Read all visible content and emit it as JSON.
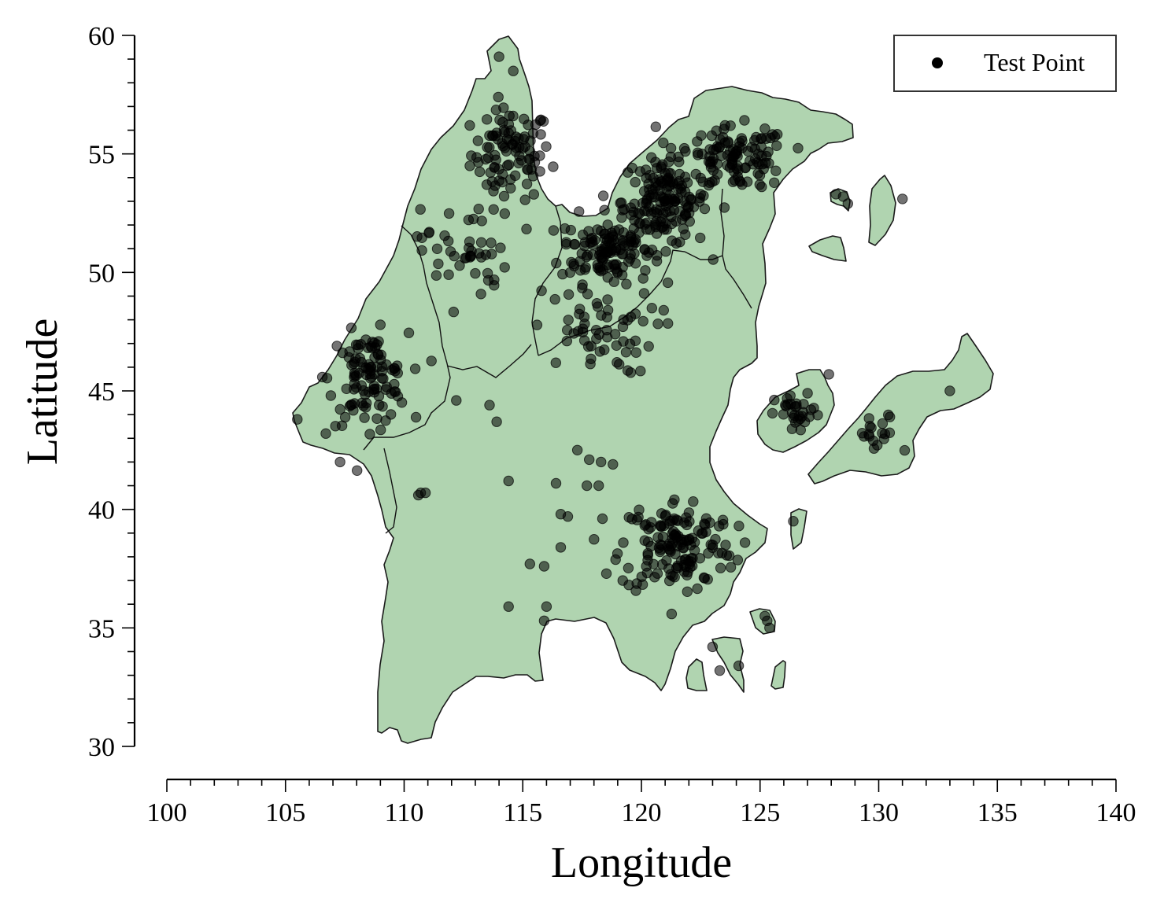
{
  "chart_data": {
    "type": "scatter",
    "xlabel": "Longitude",
    "ylabel": "Latitude",
    "xlim": [
      100,
      140
    ],
    "ylim": [
      30,
      60
    ],
    "xticks": [
      "100",
      "105",
      "110",
      "115",
      "120",
      "125",
      "130",
      "135",
      "140"
    ],
    "yticks": [
      "30",
      "35",
      "40",
      "45",
      "50",
      "55",
      "60"
    ],
    "grid": false,
    "legend": {
      "placement": "top-right",
      "entries": [
        "Test Point"
      ]
    },
    "series": [
      {
        "name": "Test Point",
        "marker_color": "#000000",
        "clusters": [
          {
            "center": [
              114.5,
              55.0
            ],
            "spread": [
              1.4,
              1.6
            ],
            "count": 95
          },
          {
            "center": [
              118.5,
              51.0
            ],
            "spread": [
              1.6,
              1.2
            ],
            "count": 120
          },
          {
            "center": [
              121.0,
              53.0
            ],
            "spread": [
              1.5,
              1.6
            ],
            "count": 160
          },
          {
            "center": [
              124.0,
              54.8
            ],
            "spread": [
              1.8,
              1.1
            ],
            "count": 110
          },
          {
            "center": [
              108.5,
              45.5
            ],
            "spread": [
              1.4,
              1.6
            ],
            "count": 110
          },
          {
            "center": [
              121.5,
              38.5
            ],
            "spread": [
              2.0,
              1.7
            ],
            "count": 150
          },
          {
            "center": [
              118.0,
              47.5
            ],
            "spread": [
              2.2,
              1.5
            ],
            "count": 60
          },
          {
            "center": [
              112.5,
              51.0
            ],
            "spread": [
              1.5,
              2.0
            ],
            "count": 45
          },
          {
            "center": [
              126.6,
              44.0
            ],
            "spread": [
              0.8,
              0.7
            ],
            "count": 30
          },
          {
            "center": [
              130.0,
              43.0
            ],
            "spread": [
              0.8,
              0.9
            ],
            "count": 18
          }
        ],
        "points": [
          [
            114.0,
            59.1
          ],
          [
            114.6,
            58.5
          ],
          [
            131.0,
            53.1
          ],
          [
            128.5,
            53.2
          ],
          [
            128.7,
            52.9
          ],
          [
            128.2,
            53.3
          ],
          [
            126.4,
            39.5
          ],
          [
            124.1,
            33.4
          ],
          [
            123.3,
            33.2
          ],
          [
            123.0,
            34.2
          ],
          [
            125.2,
            35.5
          ],
          [
            125.4,
            35.0
          ],
          [
            125.3,
            35.3
          ],
          [
            133.0,
            45.0
          ],
          [
            127.9,
            45.7
          ],
          [
            114.4,
            41.2
          ],
          [
            114.4,
            35.9
          ],
          [
            116.0,
            35.9
          ],
          [
            115.9,
            35.3
          ],
          [
            115.3,
            37.7
          ],
          [
            115.9,
            37.6
          ],
          [
            116.6,
            38.4
          ],
          [
            116.6,
            39.8
          ],
          [
            116.9,
            39.7
          ],
          [
            116.4,
            41.1
          ],
          [
            117.3,
            42.5
          ],
          [
            117.8,
            42.1
          ],
          [
            118.3,
            42.0
          ],
          [
            118.8,
            41.9
          ],
          [
            117.7,
            41.0
          ],
          [
            118.2,
            41.0
          ],
          [
            110.7,
            40.7
          ],
          [
            110.9,
            40.7
          ],
          [
            110.6,
            40.6
          ],
          [
            107.3,
            42.0
          ],
          [
            105.5,
            43.8
          ],
          [
            106.7,
            43.2
          ],
          [
            113.6,
            44.4
          ],
          [
            113.9,
            43.7
          ],
          [
            112.2,
            44.6
          ]
        ]
      }
    ]
  },
  "legend": {
    "label": "Test Point"
  },
  "colors": {
    "land_fill": "#b0d4b0",
    "land_stroke": "#1a1a1a",
    "marker": "#000000",
    "background": "#ffffff"
  }
}
